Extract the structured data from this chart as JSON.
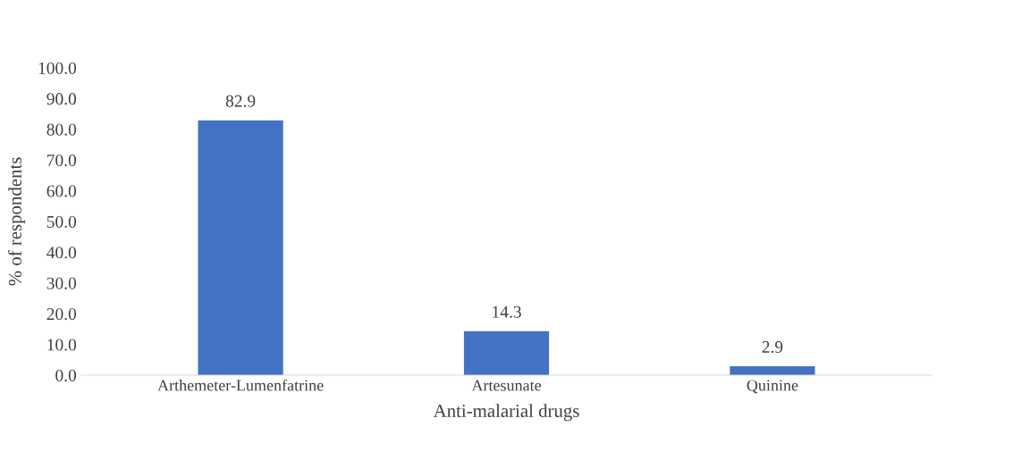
{
  "chart_data": {
    "type": "bar",
    "xlabel": "Anti-malarial drugs",
    "ylabel": "% of respondents",
    "categories": [
      "Arthemeter-Lumenfatrine",
      "Artesunate",
      "Quinine"
    ],
    "values": [
      82.9,
      14.3,
      2.9
    ],
    "color": "#4472c4",
    "ylim": [
      0,
      100
    ],
    "yticks": [
      {
        "value": 0,
        "label": "0.0"
      },
      {
        "value": 10,
        "label": "10.0"
      },
      {
        "value": 20,
        "label": "20.0"
      },
      {
        "value": 30,
        "label": "30.0"
      },
      {
        "value": 40,
        "label": "40.0"
      },
      {
        "value": 50,
        "label": "50.0"
      },
      {
        "value": 60,
        "label": "60.0"
      },
      {
        "value": 70,
        "label": "70.0"
      },
      {
        "value": 80,
        "label": "80.0"
      },
      {
        "value": 90,
        "label": "90.0"
      },
      {
        "value": 100,
        "label": "100.0"
      }
    ],
    "data_labels": true,
    "grid": false,
    "legend": false
  }
}
